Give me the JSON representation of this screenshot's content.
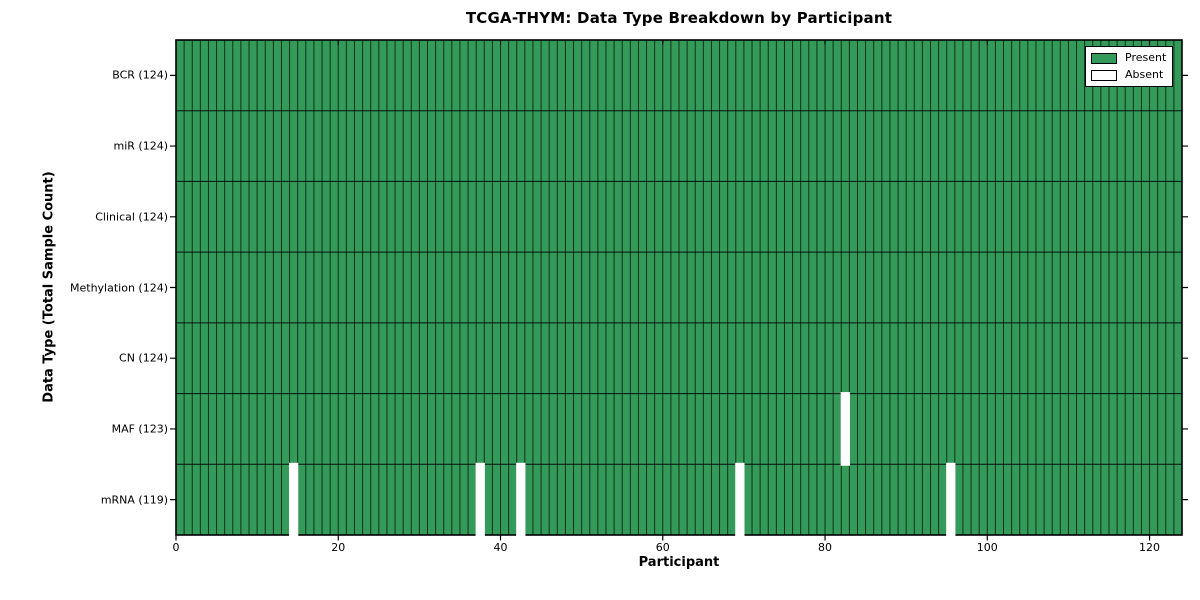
{
  "chart_data": {
    "type": "heatmap",
    "title": "TCGA-THYM: Data Type Breakdown by Participant",
    "xlabel": "Participant",
    "ylabel": "Data Type (Total Sample Count)",
    "x_ticks": [
      0,
      20,
      40,
      60,
      80,
      100,
      120
    ],
    "xlim": [
      0,
      124
    ],
    "n_participants": 124,
    "grid": true,
    "legend_position": "upper right",
    "legend": [
      {
        "label": "Present",
        "color": "#349a59"
      },
      {
        "label": "Absent",
        "color": "#ffffff"
      }
    ],
    "colors": {
      "present": "#349a59",
      "absent": "#ffffff",
      "grid_line": "#000000",
      "frame": "#000000",
      "background": "#ffffff"
    },
    "rows": [
      {
        "data_type": "BCR",
        "total_samples": 124,
        "label": "BCR (124)",
        "absent_participants": []
      },
      {
        "data_type": "miR",
        "total_samples": 124,
        "label": "miR (124)",
        "absent_participants": []
      },
      {
        "data_type": "Clinical",
        "total_samples": 124,
        "label": "Clinical (124)",
        "absent_participants": []
      },
      {
        "data_type": "Methylation",
        "total_samples": 124,
        "label": "Methylation (124)",
        "absent_participants": []
      },
      {
        "data_type": "CN",
        "total_samples": 124,
        "label": "CN (124)",
        "absent_participants": []
      },
      {
        "data_type": "MAF",
        "total_samples": 123,
        "label": "MAF (123)",
        "absent_participants": [
          82
        ]
      },
      {
        "data_type": "mRNA",
        "total_samples": 119,
        "label": "mRNA (119)",
        "absent_participants": [
          14,
          37,
          42,
          69,
          95
        ]
      }
    ]
  }
}
